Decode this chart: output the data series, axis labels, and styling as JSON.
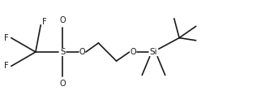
{
  "bg_color": "#ffffff",
  "line_color": "#1a1a1a",
  "line_width": 1.2,
  "font_size": 7.0,
  "font_family": "DejaVu Sans",
  "figsize": [
    3.22,
    1.28
  ],
  "dpi": 100,
  "xlim": [
    0,
    10
  ],
  "ylim": [
    0,
    4
  ]
}
